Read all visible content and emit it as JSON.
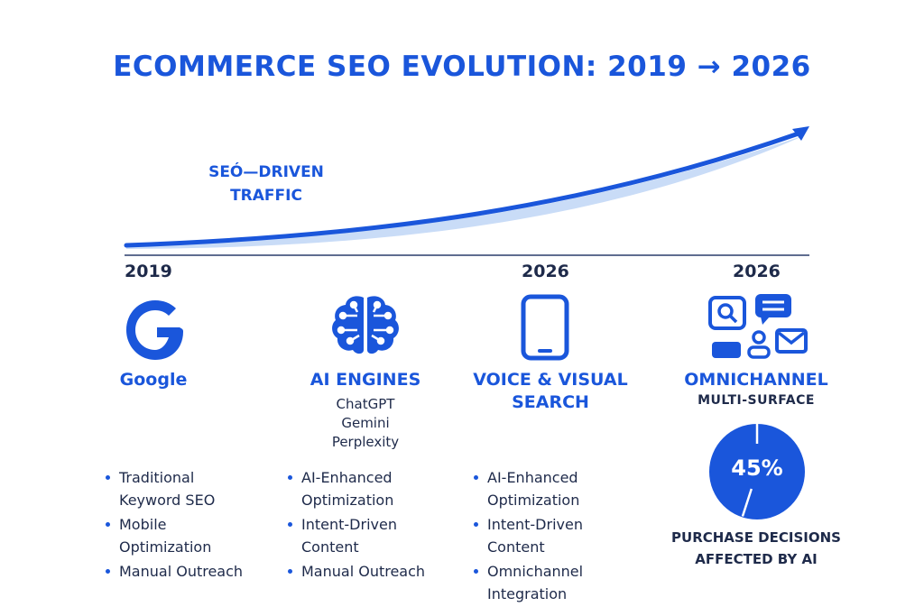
{
  "title": "ECOMMERCE SEO EVOLUTION: 2019 → 2026",
  "traffic_label": [
    "SEÓ—DRIVEN",
    "TRAFFIC"
  ],
  "colors": {
    "accent": "#1a56db",
    "text": "#1e2a4a",
    "fill": "#c9dcf7"
  },
  "timeline": {
    "years": [
      "2019",
      "2026",
      "2026"
    ]
  },
  "columns": [
    {
      "icon": "google-g-icon",
      "heading": [
        "Google"
      ],
      "subs": [],
      "bullets": [
        [
          "Traditional",
          "Keyword SEO"
        ],
        [
          "Mobile",
          "Optimization"
        ],
        [
          "Manual Outreach"
        ]
      ]
    },
    {
      "icon": "brain-circuit-icon",
      "heading": [
        "AI ENGINES"
      ],
      "subs": [
        "ChatGPT",
        "Gemini",
        "Perplexity"
      ],
      "bullets": [
        [
          "AI-Enhanced",
          "Optimization"
        ],
        [
          "Intent-Driven",
          "Content"
        ],
        [
          "Manual Outreach"
        ]
      ]
    },
    {
      "icon": "smartphone-icon",
      "heading": [
        "VOICE & VISUAL",
        "SEARCH"
      ],
      "subs": [],
      "bullets": [
        [
          "AI-Enhanced",
          "Optimization"
        ],
        [
          "Intent-Driven",
          "Content"
        ],
        [
          "Omnichannel",
          "Integration"
        ]
      ]
    },
    {
      "icon": "omnichannel-icons",
      "heading": [
        "OMNICHANNEL"
      ],
      "subs": [
        "MULTI-SURFACE"
      ],
      "bullets": []
    }
  ],
  "stat": {
    "value_label": "45%",
    "value_percent": 45,
    "caption": [
      "PURCHASE DECISIONS",
      "AFFECTED BY AI"
    ]
  }
}
